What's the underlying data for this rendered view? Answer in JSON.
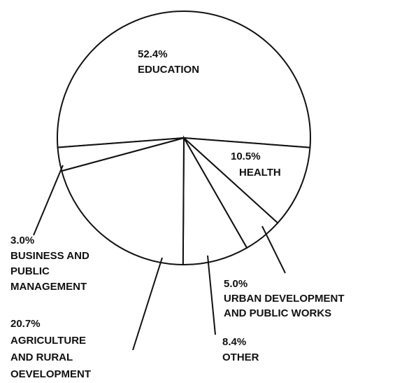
{
  "chart_data": {
    "type": "pie",
    "categories": [
      [
        "EDUCATION"
      ],
      [
        "HEALTH"
      ],
      [
        "URBAN DEVELOPMENT",
        "AND PUBLIC WORKS"
      ],
      [
        "OTHER"
      ],
      [
        "AGRICULTURE",
        "AND RURAL",
        "OEVELOPMENT"
      ],
      [
        "BUSINESS AND",
        "PUBLIC",
        "MANAGEMENT"
      ]
    ],
    "values": [
      52.4,
      10.5,
      5.0,
      8.4,
      20.7,
      3.0
    ],
    "value_labels": [
      "52.4%",
      "10.5%",
      "5.0%",
      "8.4%",
      "20.7%",
      "3.0%"
    ],
    "color": "#ffffff"
  }
}
